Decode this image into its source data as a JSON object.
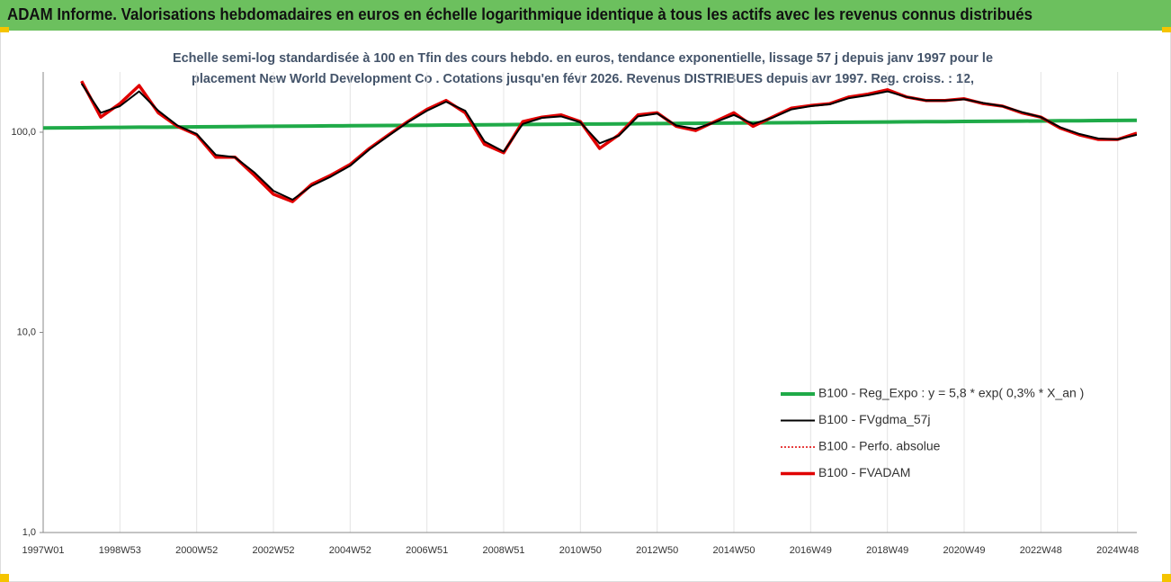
{
  "chart_data": {
    "type": "line",
    "title": "ADAM Informe. Valorisations hebdomadaires en euros en échelle logarithmique identique à tous les actifs avec les revenus connus distribués",
    "subtitle": [
      "Echelle semi-log standardisée à 100 en Tfin des cours hebdo. en euros, tendance exponentielle, lissage 57 j depuis janv 1997 pour le",
      "placement New World Development Co . Cotations jusqu'en févr 2026. Revenus DISTRIBUES depuis avr 1997. Reg. croiss. : 12,"
    ],
    "categories": [
      "1997W01",
      null,
      null,
      null,
      "1998W53",
      null,
      null,
      null,
      "2000W52",
      null,
      null,
      null,
      "2002W52",
      null,
      null,
      null,
      "2004W52",
      null,
      null,
      null,
      "2006W51",
      null,
      null,
      null,
      "2008W51",
      null,
      null,
      null,
      "2010W50",
      null,
      null,
      null,
      "2012W50",
      null,
      null,
      null,
      "2014W50",
      null,
      null,
      null,
      "2016W49",
      null,
      null,
      null,
      "2018W49",
      null,
      null,
      null,
      "2020W49",
      null,
      null,
      null,
      "2022W48",
      null,
      null,
      null,
      "2024W48",
      null
    ],
    "log_scale": true,
    "ylim": [
      1,
      200
    ],
    "yticks": [
      {
        "value": 1,
        "label": "1,0"
      },
      {
        "value": 10,
        "label": "10,0"
      },
      {
        "value": 100,
        "label": "100,0"
      }
    ],
    "legend": "lower-right",
    "series": [
      {
        "name": "B100 - Reg_Expo : y = 5,8 * exp( 0,3% *  X_an )",
        "color": "#1faa48",
        "style": "solid",
        "width": 4,
        "values": [
          105.0,
          105.2,
          105.3,
          105.5,
          105.7,
          105.9,
          106.0,
          106.2,
          106.4,
          106.5,
          106.7,
          106.9,
          107.0,
          107.2,
          107.4,
          107.6,
          107.7,
          107.9,
          108.1,
          108.2,
          108.4,
          108.6,
          108.7,
          108.9,
          109.1,
          109.3,
          109.4,
          109.6,
          109.8,
          109.9,
          110.1,
          110.3,
          110.4,
          110.6,
          110.8,
          111.0,
          111.1,
          111.3,
          111.5,
          111.6,
          111.8,
          112.0,
          112.1,
          112.3,
          112.5,
          112.7,
          112.8,
          113.0,
          113.2,
          113.3,
          113.5,
          113.7,
          113.8,
          114.0,
          114.2,
          114.4,
          114.5,
          114.7
        ]
      },
      {
        "name": "B100 - FVgdma_57j",
        "color": "#000000",
        "style": "solid",
        "width": 2,
        "values": [
          null,
          null,
          175,
          125,
          135,
          160,
          128,
          108,
          98,
          77,
          75,
          63,
          51,
          46,
          54,
          60,
          68,
          82,
          96,
          112,
          128,
          142,
          128,
          90,
          80,
          110,
          118,
          120,
          112,
          88,
          96,
          120,
          124,
          108,
          104,
          112,
          122,
          110,
          118,
          130,
          135,
          138,
          148,
          153,
          160,
          150,
          144,
          144,
          146,
          140,
          135,
          126,
          119,
          106,
          98,
          93,
          92,
          97
        ]
      },
      {
        "name": "B100 - Perfo. absolue",
        "color": "#e00000",
        "style": "dotted",
        "width": 1.5,
        "values": [
          null,
          null,
          180,
          119,
          139,
          171,
          125,
          107,
          97,
          75,
          75,
          61,
          49,
          45,
          55,
          61,
          69,
          83,
          97,
          113,
          130,
          144,
          125,
          87,
          79,
          113,
          119,
          122,
          113,
          83,
          97,
          122,
          125,
          107,
          102,
          113,
          125,
          107,
          119,
          132,
          136,
          139,
          150,
          155,
          163,
          150,
          144,
          144,
          147,
          139,
          135,
          125,
          119,
          105,
          97,
          92,
          92,
          99
        ]
      },
      {
        "name": "B100 - FVADAM",
        "color": "#e00000",
        "style": "solid",
        "width": 3.5,
        "values": [
          null,
          null,
          180,
          119,
          139,
          171,
          125,
          107,
          97,
          75,
          75,
          61,
          49,
          45,
          55,
          61,
          69,
          83,
          97,
          113,
          130,
          144,
          125,
          87,
          79,
          113,
          119,
          122,
          113,
          83,
          97,
          122,
          125,
          107,
          102,
          113,
          125,
          107,
          119,
          132,
          136,
          139,
          150,
          155,
          163,
          150,
          144,
          144,
          147,
          139,
          135,
          125,
          119,
          105,
          97,
          92,
          92,
          99
        ]
      }
    ]
  }
}
